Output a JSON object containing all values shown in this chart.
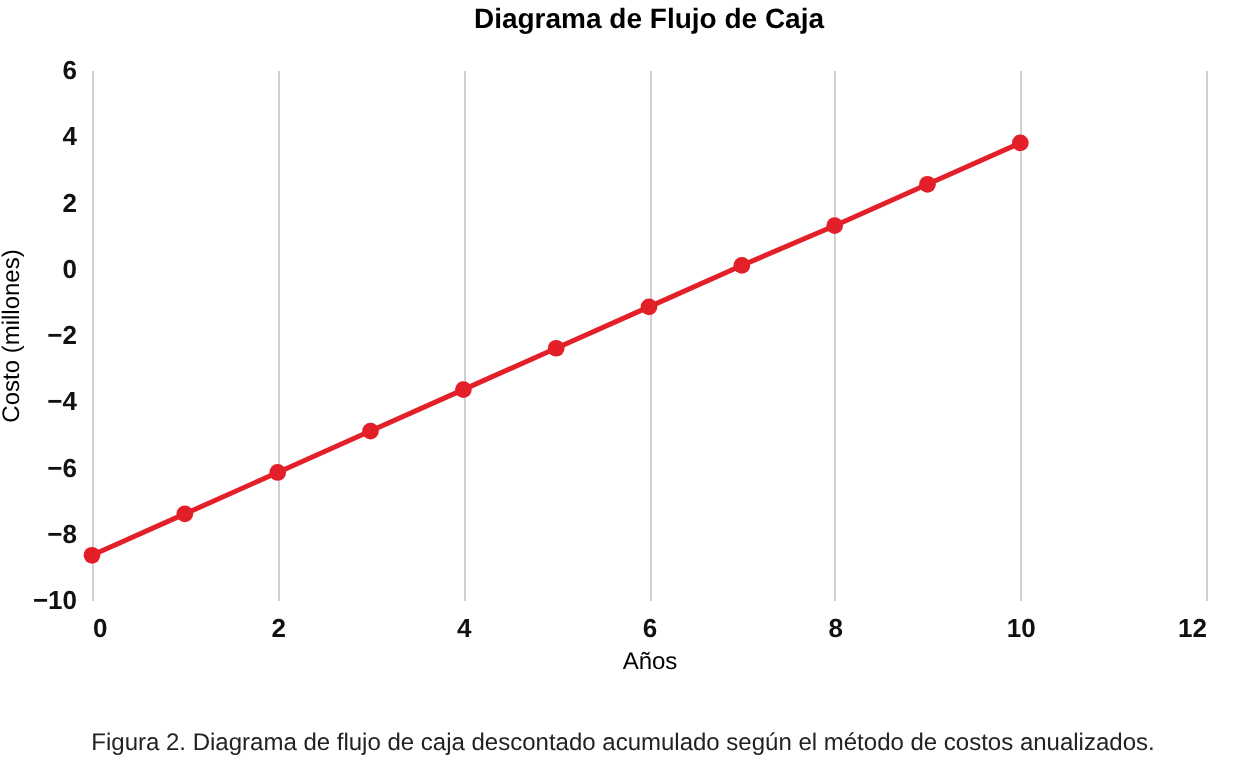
{
  "chart_data": {
    "type": "line",
    "title": "Diagrama de Flujo de Caja",
    "xlabel": "Años",
    "ylabel": "Costo (millones)",
    "x": [
      0,
      1,
      2,
      3,
      4,
      5,
      6,
      7,
      8,
      9,
      10
    ],
    "series": [
      {
        "color": "#e3202a",
        "values": [
          -8.65,
          -7.4,
          -6.15,
          -4.9,
          -3.65,
          -2.4,
          -1.15,
          0.1,
          1.3,
          2.55,
          3.8
        ]
      }
    ],
    "xlim": [
      0,
      12
    ],
    "xticks": [
      0,
      2,
      4,
      6,
      8,
      10,
      12
    ],
    "ylim": [
      -10,
      6
    ],
    "yticks": [
      -10,
      -8,
      -6,
      -4,
      -2,
      0,
      2,
      4,
      6
    ],
    "grid": "x",
    "marker": "circle",
    "line_style": "solid",
    "annotations": [
      "Figura 2. Diagrama de flujo de caja descontado acumulado según el método de costos anualizados."
    ]
  }
}
